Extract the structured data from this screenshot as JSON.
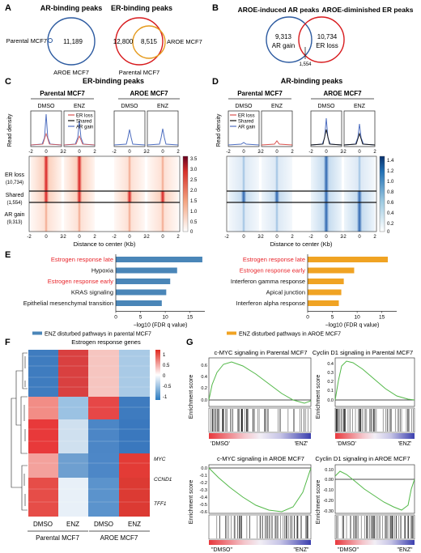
{
  "panels": {
    "A": {
      "letter": "A",
      "venn1": {
        "title": "AR-binding peaks",
        "left_label": "Parental MCF7",
        "count": "11,189",
        "bottom_label": "AROE MCF7"
      },
      "venn2": {
        "title": "ER-binding peaks",
        "left_count": "12,800",
        "right_count": "8,515",
        "right_label": "AROE MCF7",
        "bottom_label": "Parental MCF7"
      }
    },
    "B": {
      "letter": "B",
      "title_left": "AROE-induced AR peaks",
      "title_right": "AROE-diminished ER peaks",
      "left_count": "9,313",
      "left_sub": "AR gain",
      "right_count": "10,734",
      "right_sub": "ER loss",
      "shared_count": "1,554"
    },
    "C": {
      "letter": "C",
      "title": "ER-binding peaks",
      "groups": [
        "Parental MCF7",
        "AROE MCF7"
      ],
      "cols": [
        "DMSO",
        "ENZ",
        "DMSO",
        "ENZ"
      ],
      "ylabel": "Read density",
      "legend": [
        "ER loss",
        "Shared",
        "AR gain"
      ],
      "row_labels": [
        {
          "name": "ER loss",
          "n": "(10,734)"
        },
        {
          "name": "Shared",
          "n": "(1,554)"
        },
        {
          "name": "AR gain",
          "n": "(9,313)"
        }
      ],
      "xticks": [
        "-2",
        "0",
        "2"
      ],
      "colorbar": [
        "3.5",
        "3.0",
        "2.5",
        "2.0",
        "1.5",
        "1.0",
        "0.5",
        "0"
      ],
      "xlabel": "Distance to center (Kb)"
    },
    "D": {
      "letter": "D",
      "title": "AR-binding peaks",
      "groups": [
        "Parental MCF7",
        "AROE MCF7"
      ],
      "cols": [
        "DMSO",
        "ENZ",
        "DMSO",
        "ENZ"
      ],
      "ylabel": "Read density",
      "legend": [
        "ER loss",
        "Shared",
        "AR gain"
      ],
      "xticks": [
        "-2",
        "0",
        "2"
      ],
      "colorbar": [
        "1.4",
        "1.2",
        "1.0",
        "0.8",
        "0.6",
        "0.4",
        "0.2",
        "0"
      ],
      "xlabel": "Distance to center (Kb)"
    },
    "E": {
      "letter": "E"
    },
    "F": {
      "letter": "F",
      "title": "Estrogen response genes",
      "scale": [
        "1",
        "0.5",
        "0",
        "-0.5",
        "-1"
      ],
      "genes": [
        "MYC",
        "CCND1",
        "TFF1"
      ],
      "cols": [
        "DMSO",
        "ENZ",
        "DMSO",
        "ENZ"
      ],
      "groups": [
        "Parental MCF7",
        "AROE MCF7"
      ]
    },
    "G": {
      "letter": "G",
      "ylabel": "Enrichment score",
      "plots": [
        {
          "title": "c-MYC signaling in Parental MCF7",
          "left": "'DMSO'",
          "right": "'ENZ'",
          "yticks": [
            "0.6",
            "0.4",
            "0.2",
            "0.0"
          ]
        },
        {
          "title": "Cyclin D1 signaling in Parental MCF7",
          "left": "'DMSO'",
          "right": "'ENZ'",
          "yticks": [
            "0.4",
            "0.3",
            "0.2",
            "0.1",
            "0.0"
          ]
        },
        {
          "title": "c-MYC signaling in AROE MCF7",
          "left": "\"DMSO\"",
          "right": "\"ENZ\"",
          "yticks": [
            "-0.6",
            "-0.5",
            "-0.4",
            "-0.3",
            "-0.2",
            "-0.1",
            "0.0"
          ]
        },
        {
          "title": "Cyclin D1 signaling in AROE MCF7",
          "left": "\"DMSO\"",
          "right": "\"ENZ\"",
          "yticks": [
            "0.10",
            "0.00",
            "-0.10",
            "-0.20",
            "-0.30"
          ]
        }
      ]
    }
  },
  "chart_data": [
    {
      "type": "bar",
      "panel": "E-left",
      "categories": [
        "Estrogen response late",
        "Hypoxia",
        "Estrogen response early",
        "KRAS signaling",
        "Epithelial mesenchymal transition"
      ],
      "values": [
        17.5,
        12.4,
        11.0,
        10.2,
        9.3
      ],
      "highlighted": [
        "Estrogen response late",
        "Estrogen response early"
      ],
      "xticks": [
        "0",
        "5",
        "10",
        "15"
      ],
      "xlim": [
        0,
        18
      ],
      "xlabel": "−log10 (FDR q value)",
      "legend": "ENZ disturbed pathways in parental MCF7",
      "color": "#4a86b8"
    },
    {
      "type": "bar",
      "panel": "E-right",
      "categories": [
        "Estrogen response late",
        "Estrogen response early",
        "Interferon gamma response",
        "Apical junction",
        "Interferon alpha response"
      ],
      "values": [
        16.2,
        9.4,
        7.3,
        6.8,
        6.3
      ],
      "highlighted": [
        "Estrogen response late",
        "Estrogen response early"
      ],
      "xticks": [
        "0",
        "5",
        "10",
        "15"
      ],
      "xlim": [
        0,
        18
      ],
      "xlabel": "−log10 (FDR q value)",
      "legend": "ENZ disturbed pathways in AROE MCF7",
      "color": "#f0a323"
    }
  ],
  "colors": {
    "red": "#d7191c",
    "blue": "#2c5aa0",
    "orange": "#e59a1c",
    "bar_blue": "#4a86b8",
    "bar_orange": "#f0a323",
    "gsea_green": "#52b848",
    "highlight": "#e8242a"
  }
}
